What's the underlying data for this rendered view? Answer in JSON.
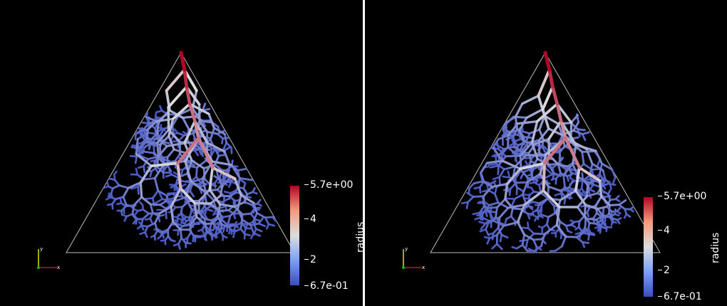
{
  "views": [
    {
      "id": "left",
      "colorbar": {
        "title": "radius",
        "labels": [
          "5.7e+00",
          "4",
          "2",
          "6.7e-01"
        ]
      },
      "axes_labels": {
        "x": "x",
        "y": "y"
      }
    },
    {
      "id": "right",
      "colorbar": {
        "title": "radius",
        "labels": [
          "5.7e+00",
          "4",
          "2",
          "6.7e-01"
        ]
      },
      "axes_labels": {
        "x": "x",
        "y": "y"
      }
    }
  ],
  "colormap": {
    "low": "#3b4cc0",
    "mid": "#dddddd",
    "high": "#b40426"
  }
}
